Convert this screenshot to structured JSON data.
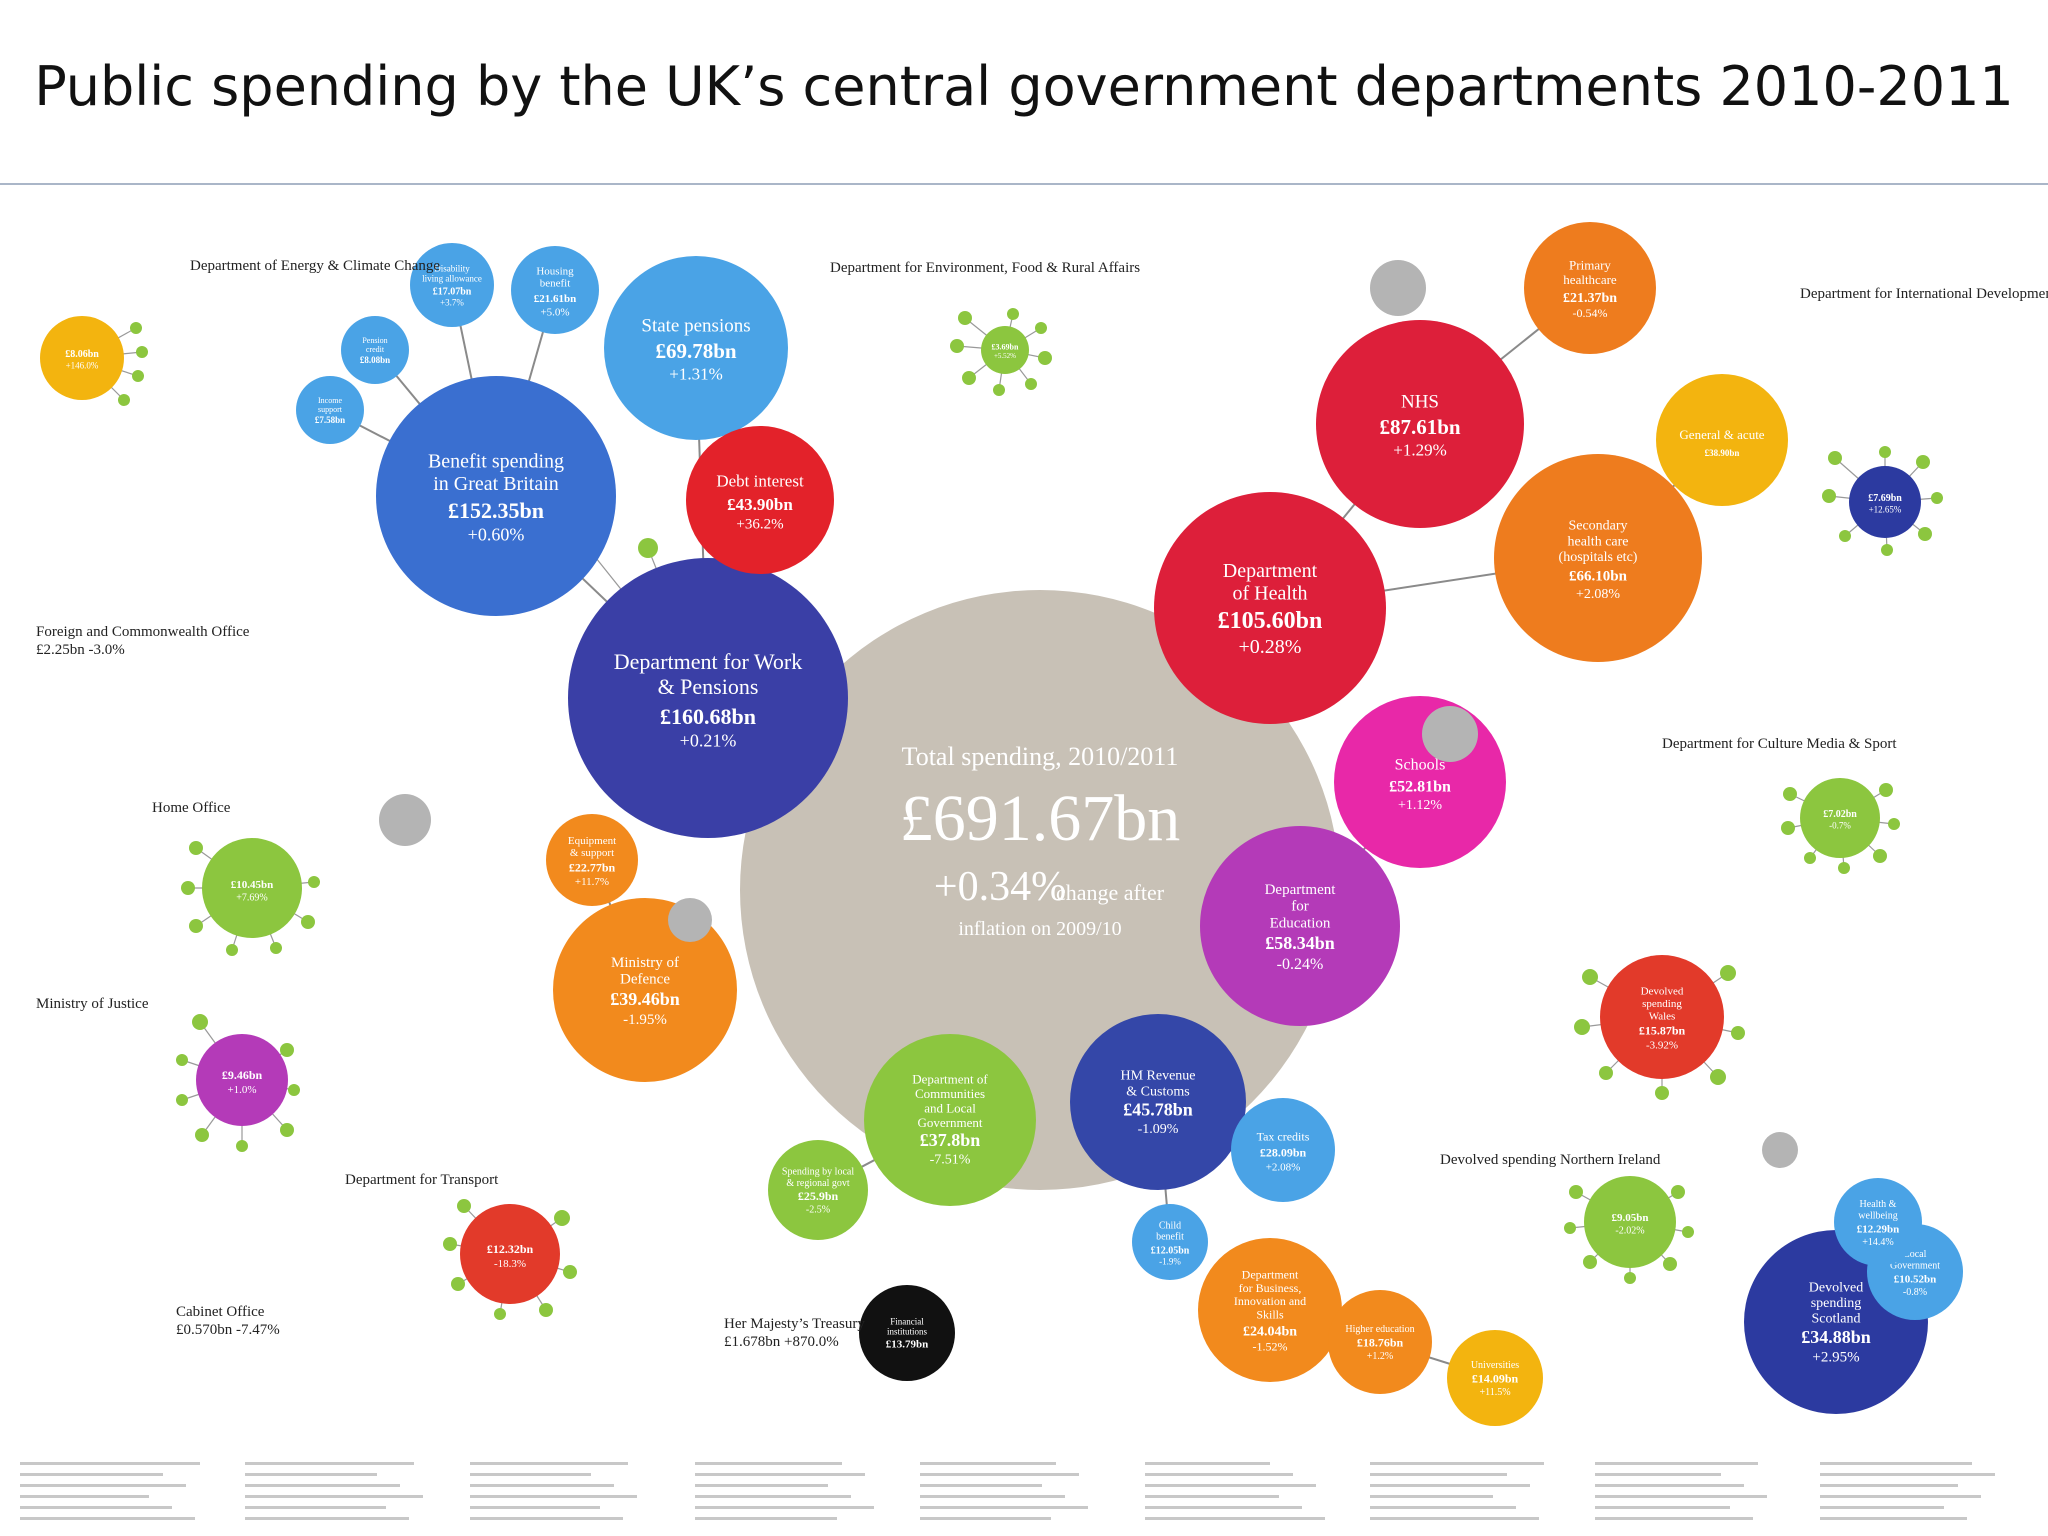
{
  "title": "Public spending by the UK’s central government departments 2010-2011",
  "colors": {
    "total": "#c8c1b6",
    "work_pensions": "#3a3fa6",
    "benefit": "#3a6fd0",
    "light_blue": "#4aa3e6",
    "debt": "#e3222a",
    "health": "#dd1f3a",
    "health_orange": "#ee7c1e",
    "health_yellow": "#f3b40f",
    "education": "#b43ab8",
    "schools": "#e828a8",
    "green": "#8cc63f",
    "orange": "#f28a1d",
    "hmrc": "#3447a8",
    "red": "#e23a2a",
    "dark": "#111111",
    "grey": "#b4b4b4",
    "navy": "#2c3aa0"
  },
  "chart_data": {
    "type": "bubble",
    "title": "Public spending by the UK’s central government departments 2010-2011",
    "total": {
      "label": "Total spending, 2010/2011",
      "value": "£691.67bn",
      "change": "+0.34%",
      "change_note": "change after",
      "note2": "inflation on 2009/10"
    },
    "bubbles": [
      {
        "name": "Department for Work & Pensions",
        "value": "£160.68bn",
        "change": "+0.21%",
        "color": "work_pensions"
      },
      {
        "name": "Benefit spending in Great Britain",
        "value": "£152.35bn",
        "change": "+0.60%",
        "color": "benefit"
      },
      {
        "name": "State pensions",
        "value": "£69.78bn",
        "change": "+1.31%",
        "color": "light_blue"
      },
      {
        "name": "Housing benefit",
        "value": "£21.61bn",
        "change": "+5.0%",
        "color": "light_blue"
      },
      {
        "name": "Disability living allowance & attendance allowance",
        "value": "£17.07bn",
        "change": "+3.7%",
        "color": "light_blue"
      },
      {
        "name": "Pension credit",
        "value": "£8.08bn",
        "change": "",
        "color": "light_blue"
      },
      {
        "name": "Income support",
        "value": "£7.58bn",
        "change": "",
        "color": "light_blue"
      },
      {
        "name": "Debt interest",
        "value": "£43.90bn",
        "change": "+36.2%",
        "color": "debt"
      },
      {
        "name": "Department of Health",
        "value": "£105.60bn",
        "change": "+0.28%",
        "color": "health"
      },
      {
        "name": "NHS",
        "value": "£87.61bn",
        "change": "+1.29%",
        "color": "health"
      },
      {
        "name": "Primary healthcare",
        "value": "£21.37bn",
        "change": "-0.54%",
        "color": "health_orange"
      },
      {
        "name": "Secondary health care (hospitals etc)",
        "value": "£66.10bn",
        "change": "+2.08%",
        "color": "health_orange"
      },
      {
        "name": "General & acute",
        "value": "£38.90bn",
        "change": "",
        "color": "health_yellow"
      },
      {
        "name": "Department for Education",
        "value": "£58.34bn",
        "change": "-0.24%",
        "color": "education"
      },
      {
        "name": "Schools",
        "value": "£52.81bn",
        "change": "+1.12%",
        "color": "schools"
      },
      {
        "name": "Ministry of Defence",
        "value": "£39.46bn",
        "change": "-1.95%",
        "color": "orange"
      },
      {
        "name": "Equipment & support",
        "value": "£22.77bn",
        "change": "+11.7%",
        "color": "orange"
      },
      {
        "name": "HM Revenue & Customs",
        "value": "£45.78bn",
        "change": "-1.09%",
        "color": "hmrc"
      },
      {
        "name": "Tax credits",
        "value": "£28.09bn",
        "change": "+2.08%",
        "color": "light_blue"
      },
      {
        "name": "Child benefit",
        "value": "£12.05bn",
        "change": "-1.9%",
        "color": "light_blue"
      },
      {
        "name": "Department of Communities and Local Government",
        "value": "£37.8bn",
        "change": "-7.51%",
        "color": "green"
      },
      {
        "name": "Spending by local & regional government",
        "value": "£25.9bn",
        "change": "-2.5%",
        "color": "green"
      },
      {
        "name": "Ministry of Justice",
        "value": "£9.46bn",
        "change": "+1.0%",
        "color": "education"
      },
      {
        "name": "Home Office",
        "value": "£10.45bn",
        "change": "+7.69%",
        "color": "green"
      },
      {
        "name": "Department for Transport",
        "value": "£12.32bn",
        "change": "-18.3%",
        "color": "red"
      },
      {
        "name": "Department for Business, Innovation and Skills",
        "value": "£24.04bn",
        "change": "-1.52%",
        "color": "orange"
      },
      {
        "name": "Higher education",
        "value": "£18.76bn",
        "change": "+1.2%",
        "color": "orange"
      },
      {
        "name": "Universities",
        "value": "£14.09bn",
        "change": "+11.5%",
        "color": "health_yellow"
      },
      {
        "name": "Devolved spending Scotland",
        "value": "£34.88bn",
        "change": "+2.95%",
        "color": "navy"
      },
      {
        "name": "Local Government",
        "value": "£10.52bn",
        "change": "-0.8%",
        "color": "light_blue"
      },
      {
        "name": "Health & wellbeing",
        "value": "£12.29bn",
        "change": "+14.4%",
        "color": "light_blue"
      },
      {
        "name": "Devolved spending Wales",
        "value": "£15.87bn",
        "change": "-3.92%",
        "color": "red"
      },
      {
        "name": "Devolved spending Northern Ireland",
        "value": "£9.05bn",
        "change": "-2.02%",
        "color": "green"
      },
      {
        "name": "Department for Culture Media & Sport",
        "value": "£7.02bn",
        "change": "-0.7%",
        "color": "green"
      },
      {
        "name": "Department for International Development",
        "value": "£7.69bn",
        "change": "+12.65%",
        "color": "navy"
      },
      {
        "name": "Department of Energy & Climate Change",
        "value": "£8.06bn",
        "change": "+146.0%",
        "color": "health_yellow"
      },
      {
        "name": "Department for Environment, Food & Rural Affairs",
        "value": "£3.69bn",
        "change": "+5.52%",
        "color": "green"
      },
      {
        "name": "Financial institutions",
        "value": "£13.79bn",
        "change": "",
        "color": "dark"
      }
    ],
    "section_headings": [
      "Department of Energy & Climate Change",
      "Department for Environment, Food & Rural Affairs",
      "Department for International Development",
      "Foreign and Commonwealth Office",
      "£2.25bn -3.0%",
      "Home Office",
      "Ministry of Justice",
      "Department for Transport",
      "Cabinet Office",
      "£0.570bn -7.47%",
      "Her Majesty’s Treasury",
      "£1.678bn +870.0%",
      "Department for Culture Media & Sport",
      "Devolved spending Northern Ireland"
    ]
  }
}
